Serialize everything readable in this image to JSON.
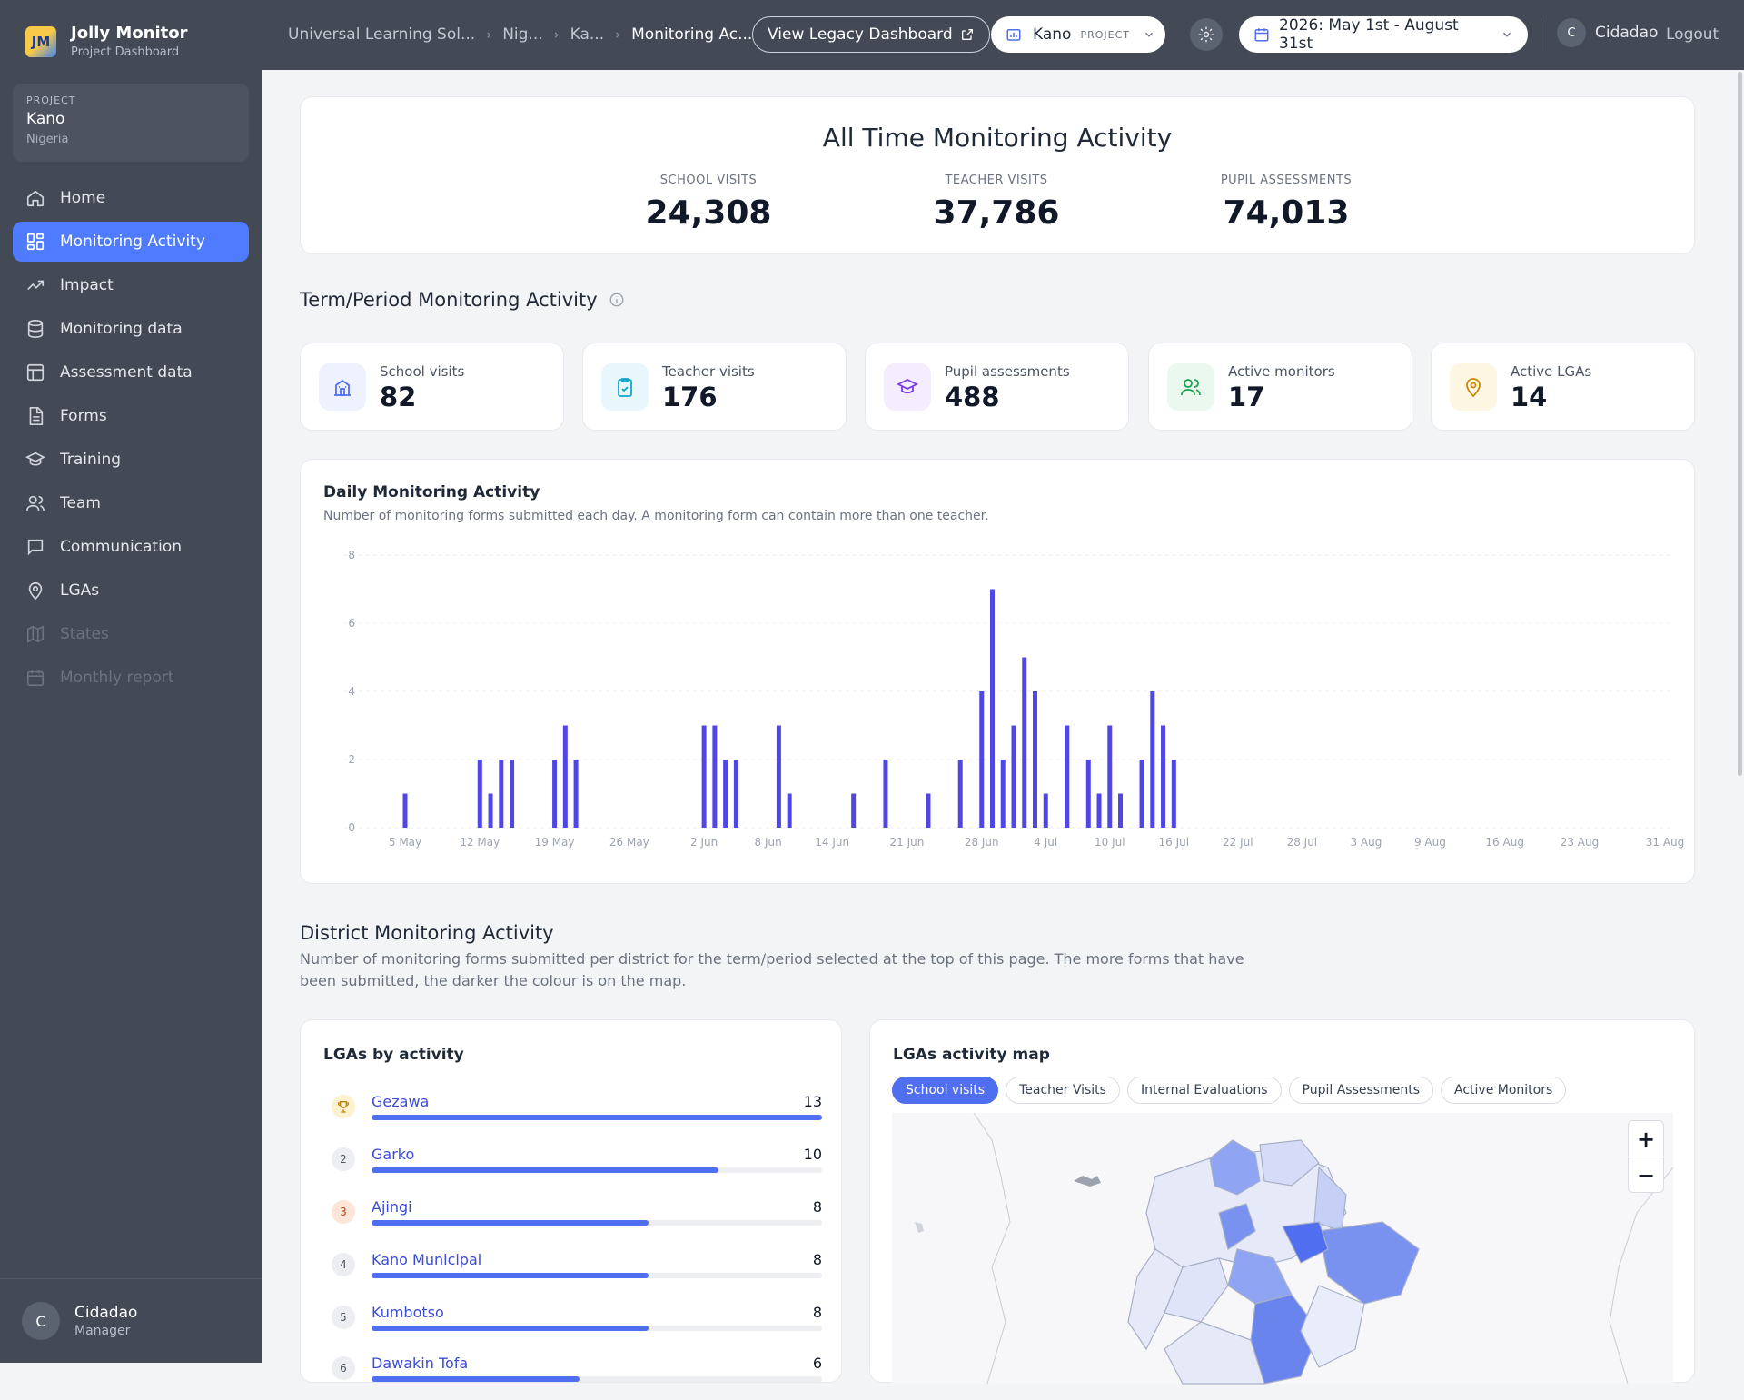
{
  "brand": {
    "logo": "JM",
    "title": "Jolly Monitor",
    "subtitle": "Project Dashboard"
  },
  "project_card": {
    "label": "PROJECT",
    "name": "Kano",
    "country": "Nigeria"
  },
  "nav": [
    {
      "label": "Home",
      "icon": "home-icon",
      "state": "normal"
    },
    {
      "label": "Monitoring Activity",
      "icon": "dashboard-grid-icon",
      "state": "active"
    },
    {
      "label": "Impact",
      "icon": "trend-up-icon",
      "state": "normal"
    },
    {
      "label": "Monitoring data",
      "icon": "database-icon",
      "state": "normal"
    },
    {
      "label": "Assessment data",
      "icon": "table-icon",
      "state": "normal"
    },
    {
      "label": "Forms",
      "icon": "document-icon",
      "state": "normal"
    },
    {
      "label": "Training",
      "icon": "graduation-cap-icon",
      "state": "normal"
    },
    {
      "label": "Team",
      "icon": "users-icon",
      "state": "normal"
    },
    {
      "label": "Communication",
      "icon": "message-icon",
      "state": "normal"
    },
    {
      "label": "LGAs",
      "icon": "map-pin-icon",
      "state": "normal"
    },
    {
      "label": "States",
      "icon": "map-icon",
      "state": "disabled"
    },
    {
      "label": "Monthly report",
      "icon": "calendar-icon",
      "state": "disabled"
    }
  ],
  "sidebar_user": {
    "initial": "C",
    "name": "Cidadao",
    "role": "Manager"
  },
  "topbar": {
    "breadcrumbs": [
      "Universal Learning Sol...",
      "Nig...",
      "Ka...",
      "Monitoring Ac..."
    ],
    "legacy_button": "View Legacy Dashboard",
    "project_select": {
      "value": "Kano",
      "tag": "PROJECT"
    },
    "date_select": "2026: May 1st - August 31st",
    "user_initial": "C",
    "user_name": "Cidadao",
    "logout": "Logout"
  },
  "all_time": {
    "title": "All Time Monitoring Activity",
    "stats": [
      {
        "label": "SCHOOL VISITS",
        "value": "24,308"
      },
      {
        "label": "TEACHER VISITS",
        "value": "37,786"
      },
      {
        "label": "PUPIL ASSESSMENTS",
        "value": "74,013"
      }
    ]
  },
  "term": {
    "title": "Term/Period Monitoring Activity",
    "cards": [
      {
        "label": "School visits",
        "value": "82",
        "icon": "school-icon",
        "color": "#4f6ef0",
        "bg": "#eef2ff"
      },
      {
        "label": "Teacher visits",
        "value": "176",
        "icon": "clipboard-check-icon",
        "color": "#0ea5c6",
        "bg": "#e8f7fb"
      },
      {
        "label": "Pupil assessments",
        "value": "488",
        "icon": "graduation-cap-icon",
        "color": "#7c3aed",
        "bg": "#f3edfd"
      },
      {
        "label": "Active monitors",
        "value": "17",
        "icon": "users-icon",
        "color": "#16a34a",
        "bg": "#eaf8ef"
      },
      {
        "label": "Active LGAs",
        "value": "14",
        "icon": "map-pin-icon",
        "color": "#ca8a04",
        "bg": "#fdf6e3"
      }
    ]
  },
  "chart_data": {
    "type": "bar",
    "title": "Daily Monitoring Activity",
    "subtitle": "Number of monitoring forms submitted each day. A monitoring form can contain more than one teacher.",
    "ylim": [
      0,
      8
    ],
    "yticks": [
      0,
      2,
      4,
      6,
      8
    ],
    "x_range": [
      "2026-05-01",
      "2026-08-31"
    ],
    "xticks": [
      "5 May",
      "12 May",
      "19 May",
      "26 May",
      "2 Jun",
      "8 Jun",
      "14 Jun",
      "21 Jun",
      "28 Jun",
      "4 Jul",
      "10 Jul",
      "16 Jul",
      "22 Jul",
      "28 Jul",
      "3 Aug",
      "9 Aug",
      "16 Aug",
      "23 Aug",
      "31 Aug"
    ],
    "color": "#4f46e5",
    "points": [
      {
        "x": "2026-05-05",
        "y": 1
      },
      {
        "x": "2026-05-12",
        "y": 2
      },
      {
        "x": "2026-05-13",
        "y": 1
      },
      {
        "x": "2026-05-14",
        "y": 2
      },
      {
        "x": "2026-05-15",
        "y": 2
      },
      {
        "x": "2026-05-19",
        "y": 2
      },
      {
        "x": "2026-05-20",
        "y": 3
      },
      {
        "x": "2026-05-21",
        "y": 2
      },
      {
        "x": "2026-06-02",
        "y": 3
      },
      {
        "x": "2026-06-03",
        "y": 3
      },
      {
        "x": "2026-06-04",
        "y": 2
      },
      {
        "x": "2026-06-05",
        "y": 2
      },
      {
        "x": "2026-06-09",
        "y": 3
      },
      {
        "x": "2026-06-10",
        "y": 1
      },
      {
        "x": "2026-06-16",
        "y": 1
      },
      {
        "x": "2026-06-19",
        "y": 2
      },
      {
        "x": "2026-06-23",
        "y": 1
      },
      {
        "x": "2026-06-26",
        "y": 2
      },
      {
        "x": "2026-06-28",
        "y": 4
      },
      {
        "x": "2026-06-29",
        "y": 7
      },
      {
        "x": "2026-06-30",
        "y": 2
      },
      {
        "x": "2026-07-01",
        "y": 3
      },
      {
        "x": "2026-07-02",
        "y": 5
      },
      {
        "x": "2026-07-03",
        "y": 4
      },
      {
        "x": "2026-07-04",
        "y": 1
      },
      {
        "x": "2026-07-06",
        "y": 3
      },
      {
        "x": "2026-07-08",
        "y": 2
      },
      {
        "x": "2026-07-09",
        "y": 1
      },
      {
        "x": "2026-07-10",
        "y": 3
      },
      {
        "x": "2026-07-11",
        "y": 1
      },
      {
        "x": "2026-07-13",
        "y": 2
      },
      {
        "x": "2026-07-14",
        "y": 4
      },
      {
        "x": "2026-07-15",
        "y": 3
      },
      {
        "x": "2026-07-16",
        "y": 2
      }
    ]
  },
  "district": {
    "title": "District Monitoring Activity",
    "description": "Number of monitoring forms submitted per district for the term/period selected at the top of this page. The more forms that have been submitted, the darker the colour is on the map."
  },
  "lga_list": {
    "title": "LGAs by activity",
    "max": 13,
    "items": [
      {
        "rank": "1",
        "name": "Gezawa",
        "value": 13,
        "badge": "trophy-icon"
      },
      {
        "rank": "2",
        "name": "Garko",
        "value": 10
      },
      {
        "rank": "3",
        "name": "Ajingi",
        "value": 8
      },
      {
        "rank": "4",
        "name": "Kano Municipal",
        "value": 8
      },
      {
        "rank": "5",
        "name": "Kumbotso",
        "value": 8
      },
      {
        "rank": "6",
        "name": "Dawakin Tofa",
        "value": 6
      }
    ]
  },
  "map": {
    "title": "LGAs activity map",
    "tabs": [
      "School visits",
      "Teacher Visits",
      "Internal Evaluations",
      "Pupil Assessments",
      "Active Monitors"
    ],
    "active_tab": 0,
    "zoom_in": "+",
    "zoom_out": "−"
  }
}
